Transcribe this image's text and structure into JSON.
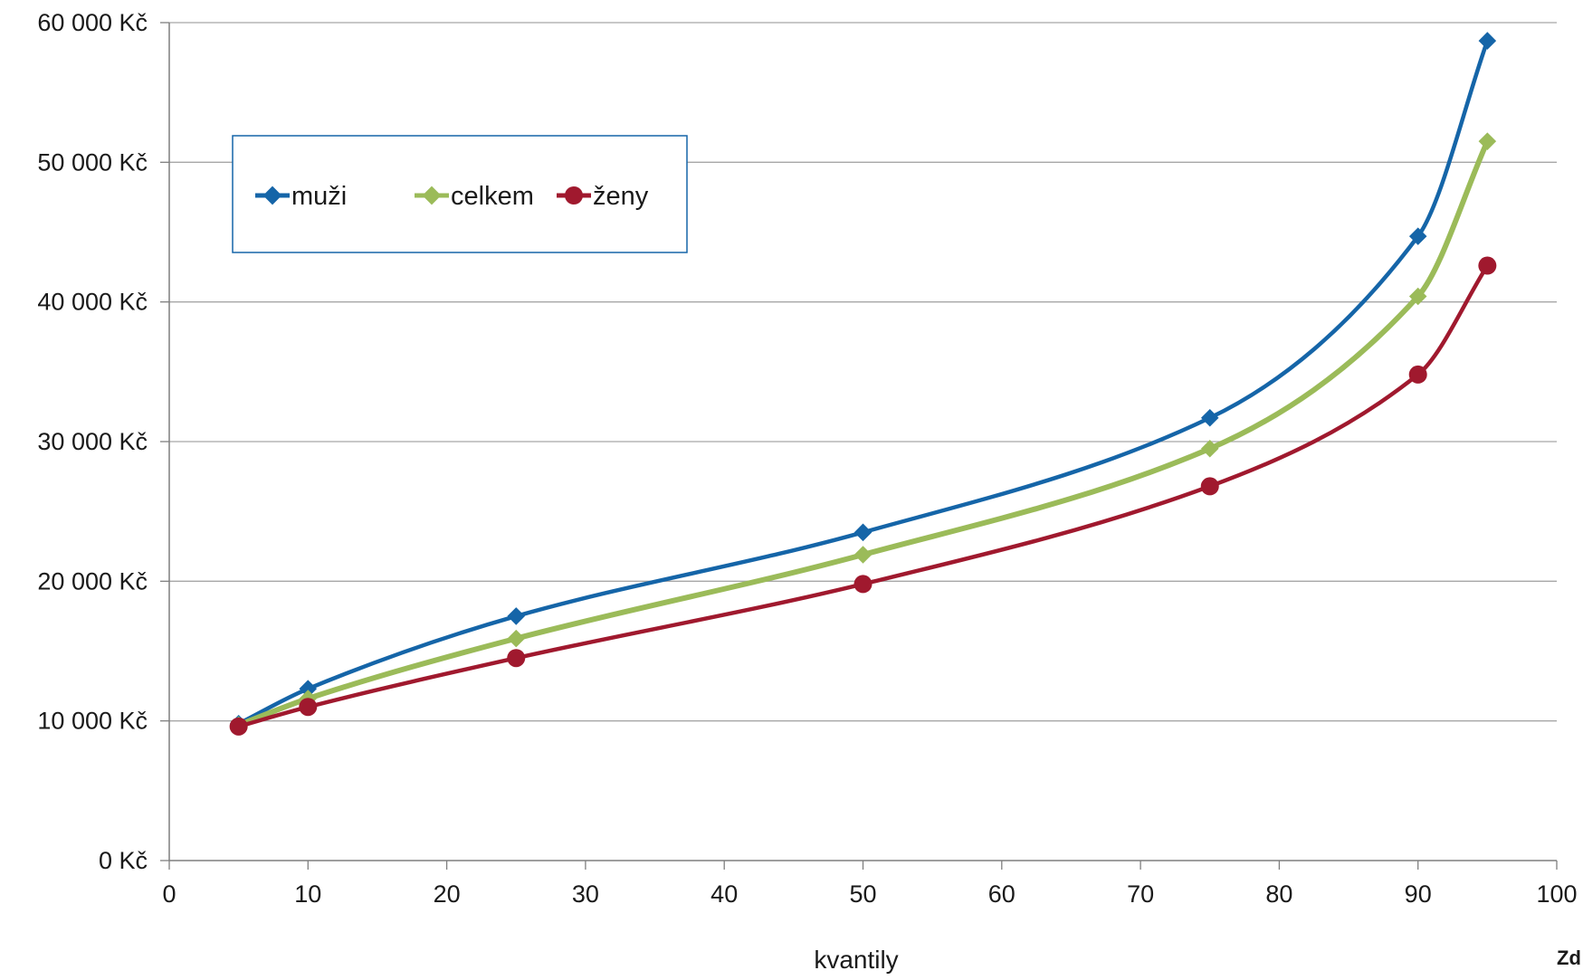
{
  "chart_data": {
    "type": "line",
    "xlabel": "kvantily",
    "corner_text": "Zd",
    "xlim": [
      0,
      100
    ],
    "ylim": [
      0,
      60000
    ],
    "x_ticks": [
      "0",
      "10",
      "20",
      "30",
      "40",
      "50",
      "60",
      "70",
      "80",
      "90",
      "100"
    ],
    "y_ticks": [
      "0 Kč",
      "10 000 Kč",
      "20 000 Kč",
      "30 000 Kč",
      "40 000 Kč",
      "50 000 Kč",
      "60 000 Kč"
    ],
    "grid": "horizontal",
    "legend_position": "top-left",
    "x": [
      5,
      10,
      25,
      50,
      75,
      90,
      95
    ],
    "series": [
      {
        "name": "muži",
        "color": "#1565a8",
        "marker": "diamond",
        "values": [
          9800,
          12300,
          17500,
          23500,
          31700,
          44700,
          58700
        ]
      },
      {
        "name": "celkem",
        "color": "#9bbb59",
        "marker": "diamond",
        "values": [
          9700,
          11600,
          15900,
          21900,
          29500,
          40400,
          51500
        ]
      },
      {
        "name": "ženy",
        "color": "#a0192e",
        "marker": "circle",
        "values": [
          9600,
          11000,
          14500,
          19800,
          26800,
          34800,
          42600
        ]
      }
    ]
  }
}
